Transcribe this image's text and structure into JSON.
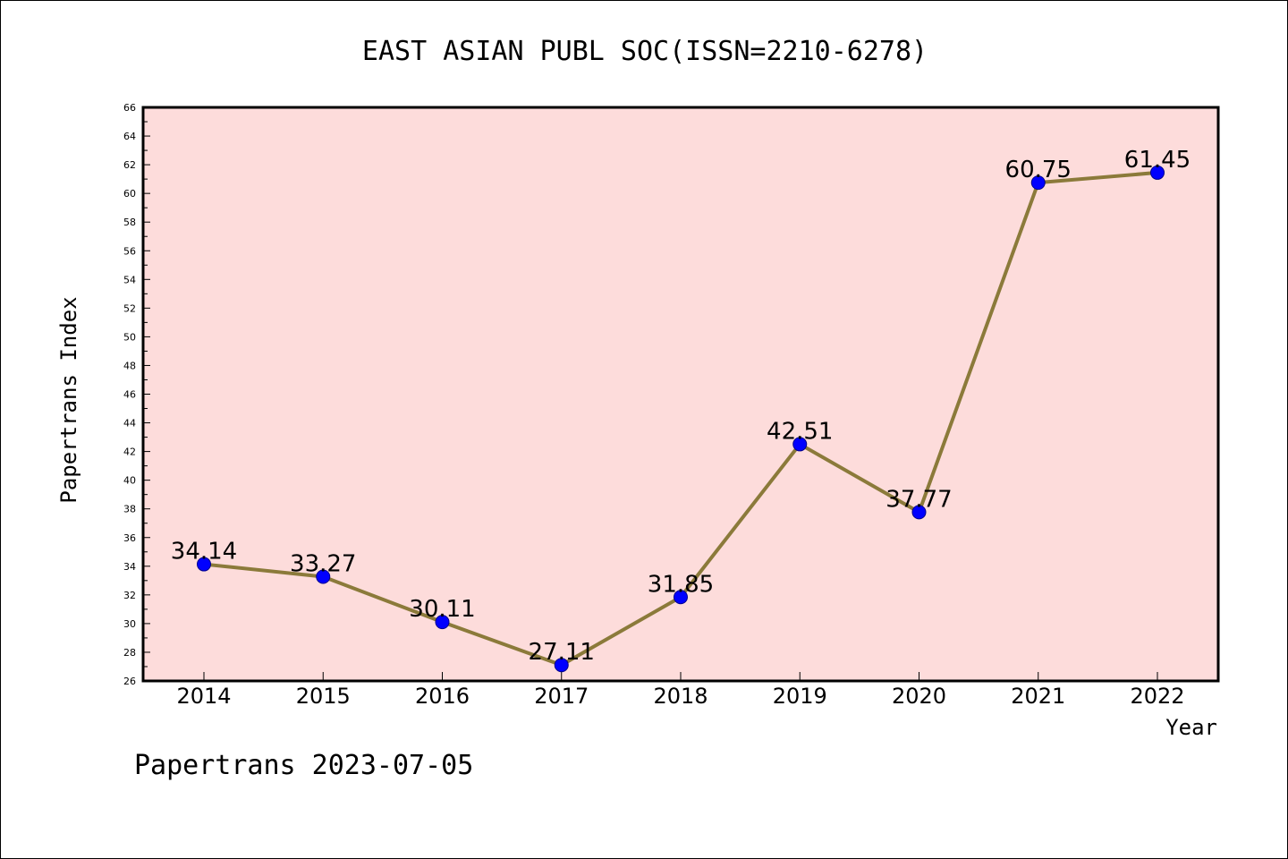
{
  "chart_data": {
    "type": "line",
    "title": "EAST ASIAN PUBL SOC(ISSN=2210-6278)",
    "xlabel": "Year",
    "ylabel": "Papertrans Index",
    "categories": [
      "2014",
      "2015",
      "2016",
      "2017",
      "2018",
      "2019",
      "2020",
      "2021",
      "2022"
    ],
    "values": [
      34.14,
      33.27,
      30.11,
      27.11,
      31.85,
      42.51,
      37.77,
      60.75,
      61.45
    ],
    "data_labels": [
      "34.14",
      "33.27",
      "30.11",
      "27.11",
      "31.85",
      "42.51",
      "37.77",
      "60.75",
      "61.45"
    ],
    "ylim": [
      26,
      66
    ],
    "yticks": [
      "26",
      "28",
      "30",
      "32",
      "34",
      "36",
      "38",
      "40",
      "42",
      "44",
      "46",
      "48",
      "50",
      "52",
      "54",
      "56",
      "58",
      "60",
      "62",
      "64",
      "66"
    ],
    "grid": false,
    "legend": "none",
    "colors": {
      "plot_background": "#fddcdb",
      "line": "#8b7a3a",
      "marker": "#0000ff",
      "marker_edge": "#00008b"
    }
  },
  "footer": "Papertrans 2023-07-05"
}
